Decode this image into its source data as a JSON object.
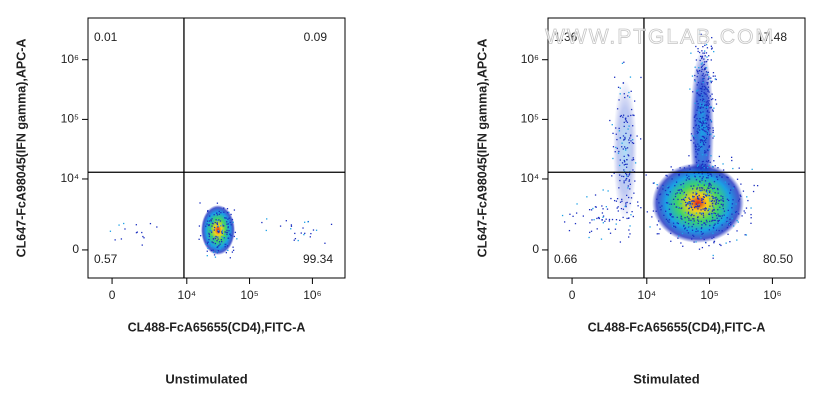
{
  "chart_data": [
    {
      "type": "quadrant",
      "title": "Unstimulated",
      "xlabel": "CL488-FcA65655(CD4),FITC-A",
      "ylabel": "CL647-FcA98045(IFN gamma),APC-A",
      "xlim": [
        -1300,
        3300000
      ],
      "ylim": [
        -1700,
        5000000
      ],
      "xticks": [
        0,
        {
          "value": 10000,
          "label": "10⁴"
        },
        {
          "value": 100000,
          "label": "10⁵"
        },
        {
          "value": 1000000,
          "label": "10⁶"
        }
      ],
      "yticks": [
        0,
        {
          "value": 10000,
          "label": "10⁴"
        },
        {
          "value": 100000,
          "label": "10⁵"
        },
        {
          "value": 1000000,
          "label": "10⁶"
        }
      ],
      "gate": {
        "x": 9000,
        "y": 13000
      },
      "values": [
        0.01,
        0.09,
        0.57,
        99.34
      ]
    },
    {
      "type": "quadrant",
      "title": "Stimulated",
      "xlabel": "CL488-FcA65655(CD4),FITC-A",
      "ylabel": "CL647-FcA98045(IFN gamma),APC-A",
      "xlim": [
        -1300,
        3300000
      ],
      "ylim": [
        -1700,
        5000000
      ],
      "xticks": [
        0,
        {
          "value": 10000,
          "label": "10⁴"
        },
        {
          "value": 100000,
          "label": "10⁵"
        },
        {
          "value": 1000000,
          "label": "10⁶"
        }
      ],
      "yticks": [
        0,
        {
          "value": 10000,
          "label": "10⁴"
        },
        {
          "value": 100000,
          "label": "10⁵"
        },
        {
          "value": 1000000,
          "label": "10⁶"
        }
      ],
      "gate": {
        "x": 9000,
        "y": 13000
      },
      "values": [
        1.36,
        17.48,
        0.66,
        80.5
      ],
      "value_labels": [
        "1.36",
        "17.48",
        "0.66",
        "80.50"
      ]
    }
  ],
  "watermark": "WWW.PTGLAB.COM"
}
